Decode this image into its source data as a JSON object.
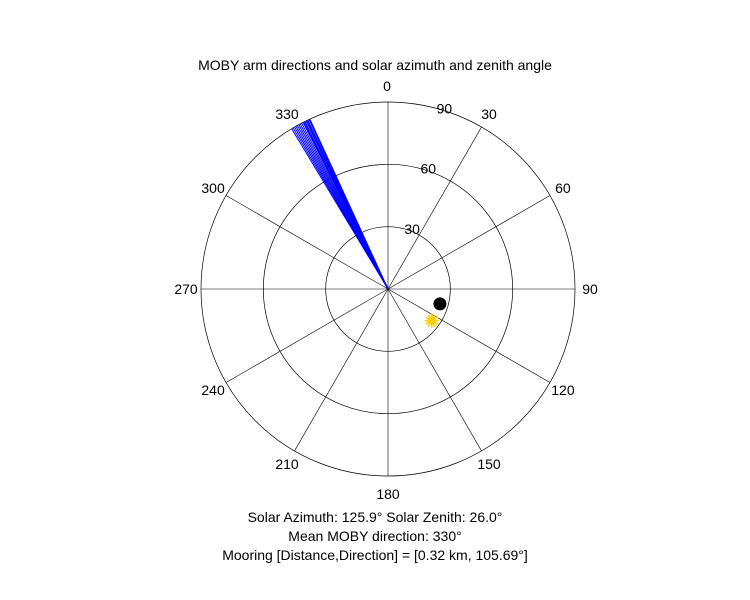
{
  "chart_data": {
    "type": "polar",
    "title": "MOBY arm directions and solar azimuth and zenith angle",
    "theta_zero": "top",
    "theta_direction": "clockwise",
    "theta_ticks": [
      0,
      30,
      60,
      90,
      120,
      150,
      180,
      210,
      240,
      270,
      300,
      330
    ],
    "theta_tick_labels": [
      "0",
      "30",
      "60",
      "90",
      "120",
      "150",
      "180",
      "210",
      "240",
      "270",
      "300",
      "330"
    ],
    "r_max": 90,
    "r_ticks": [
      30,
      60,
      90
    ],
    "r_tick_labels": [
      "30",
      "60",
      "90"
    ],
    "grid": true,
    "series": [
      {
        "type": "lines",
        "color": "#0000ff",
        "r": 90,
        "theta": [
          329,
          329.5,
          330,
          330.5,
          331,
          331.5,
          332,
          332.5,
          333,
          333.3,
          333.6,
          334,
          334.3,
          334.6,
          335,
          335.3
        ]
      },
      {
        "type": "marker",
        "shape": "filled-circle",
        "color": "#000000",
        "theta": 106,
        "r": 26
      },
      {
        "type": "marker",
        "shape": "sun",
        "color": "#ffcc00",
        "theta": 125.9,
        "r": 26
      }
    ],
    "annotations": [
      "Solar Azimuth: 125.9°    Solar Zenith: 26.0°",
      "Mean MOBY direction: 330°",
      "Mooring [Distance,Direction] = [0.32 km, 105.69°]"
    ]
  }
}
